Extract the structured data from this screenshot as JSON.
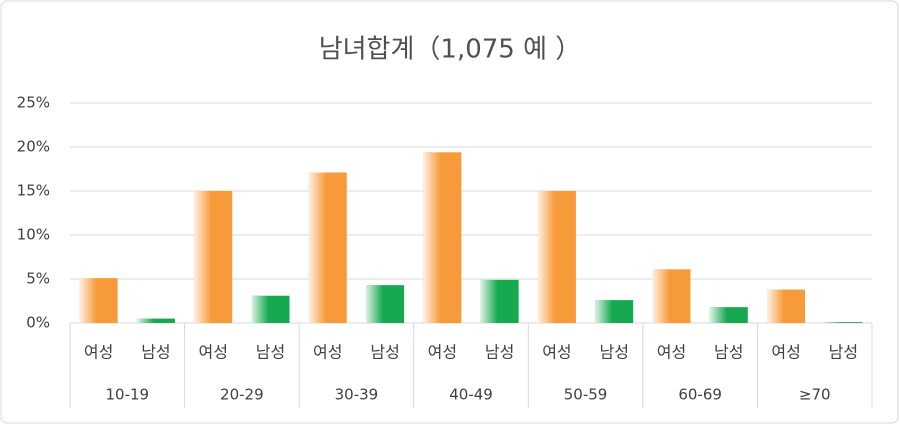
{
  "chart_data": {
    "type": "bar",
    "title": "남녀합계（1,075 예 ）",
    "categories": [
      "10-19",
      "20-29",
      "30-39",
      "40-49",
      "50-59",
      "60-69",
      "≥70"
    ],
    "series": [
      {
        "name": "여성",
        "color": "#f79a3a",
        "values": [
          5.1,
          15.0,
          17.1,
          19.4,
          15.0,
          6.1,
          3.8
        ]
      },
      {
        "name": "남성",
        "color": "#16a950",
        "values": [
          0.5,
          3.1,
          4.3,
          4.9,
          2.6,
          1.8,
          0.1
        ]
      }
    ],
    "ylim": [
      0,
      25
    ],
    "yticks": [
      {
        "value": 0,
        "label": "0%"
      },
      {
        "value": 5,
        "label": "5%"
      },
      {
        "value": 10,
        "label": "10%"
      },
      {
        "value": 15,
        "label": "15%"
      },
      {
        "value": 20,
        "label": "20%"
      },
      {
        "value": 25,
        "label": "25%"
      }
    ],
    "grid": true
  }
}
